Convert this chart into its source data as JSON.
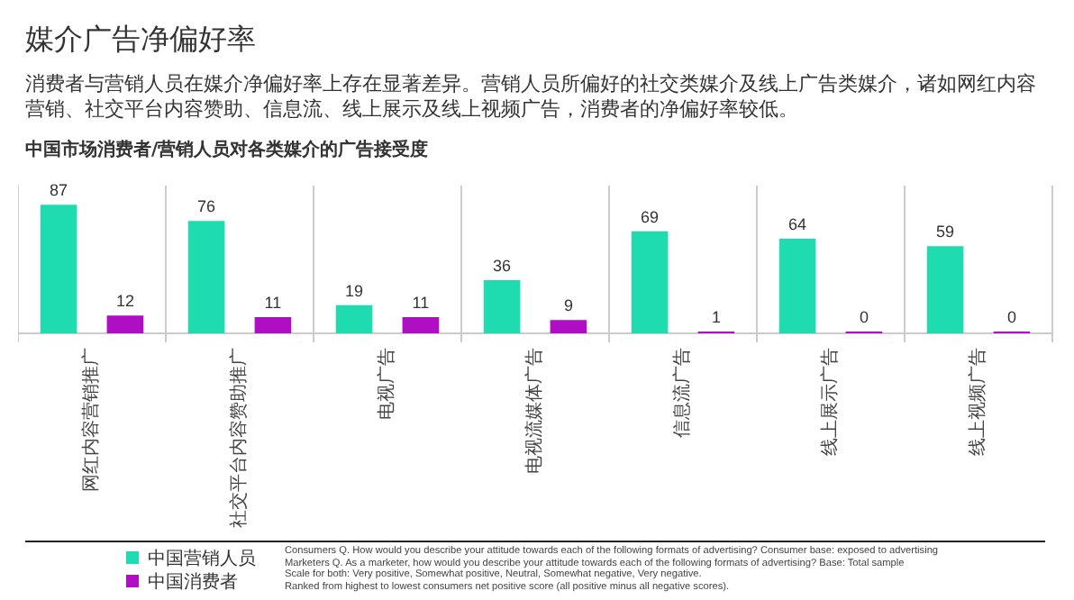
{
  "chart_data": {
    "type": "bar",
    "title": "媒介广告净偏好率",
    "subtitle": "消费者与营销人员在媒介净偏好率上存在显著差异。营销人员所偏好的社交类媒介及线上广告类媒介，诸如网红内容营销、社交平台内容赞助、信息流、线上展示及线上视频广告，消费者的净偏好率较低。",
    "xlabel": "中国市场消费者/营销人员对各类媒介的广告接受度",
    "categories": [
      "网红内容营销推广",
      "社交平台内容赞助推广",
      "电视广告",
      "电视流媒体广告",
      "信息流广告",
      "线上展示广告",
      "线上视频广告"
    ],
    "series": [
      {
        "name": "中国营销人员",
        "color": "#1fdcb0",
        "values": [
          87,
          76,
          19,
          36,
          69,
          64,
          59
        ]
      },
      {
        "name": "中国消费者",
        "color": "#b00ec4",
        "values": [
          12,
          11,
          11,
          9,
          1,
          0,
          0
        ]
      }
    ],
    "data_labels": true,
    "grid": "x",
    "legend": "bottom left",
    "annotations": [
      "Consumers Q. How would you describe your attitude towards each of the following formats of advertising? Consumer base: exposed to advertising",
      "Marketers Q. As a marketer, how would you describe your attitude towards each of the following formats of advertising? Base: Total sample",
      "Scale for both: Very positive, Somewhat positive, Neutral, Somewhat negative, Very negative.",
      "Ranked from highest to lowest consumers net positive score (all positive minus all negative scores)."
    ]
  }
}
